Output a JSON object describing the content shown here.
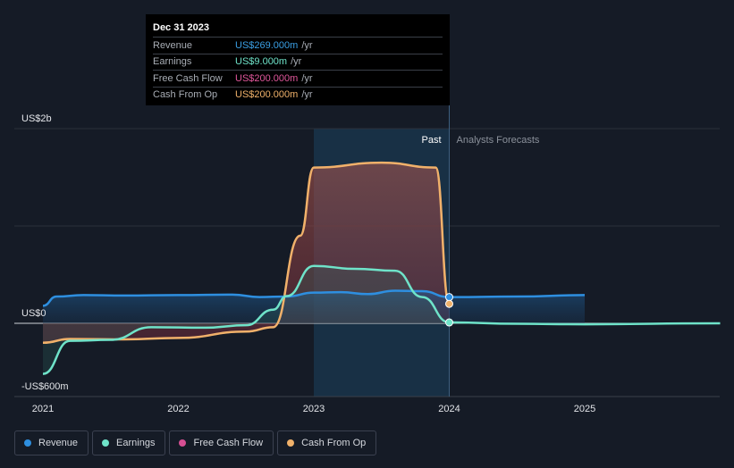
{
  "tooltip": {
    "date": "Dec 31 2023",
    "rows": [
      {
        "label": "Revenue",
        "value": "US$269.000m",
        "unit": "/yr",
        "color": "#3a9fe4"
      },
      {
        "label": "Earnings",
        "value": "US$9.000m",
        "unit": "/yr",
        "color": "#6fe3c9"
      },
      {
        "label": "Free Cash Flow",
        "value": "US$200.000m",
        "unit": "/yr",
        "color": "#e0579b"
      },
      {
        "label": "Cash From Op",
        "value": "US$200.000m",
        "unit": "/yr",
        "color": "#f0b16a"
      }
    ]
  },
  "legend": [
    {
      "label": "Revenue",
      "color": "#2e8fe0"
    },
    {
      "label": "Earnings",
      "color": "#6fe3c9"
    },
    {
      "label": "Free Cash Flow",
      "color": "#d64f93"
    },
    {
      "label": "Cash From Op",
      "color": "#f0b16a"
    }
  ],
  "chart_data": {
    "type": "area",
    "y_tick_labels": [
      "US$2b",
      "US$0",
      "-US$600m"
    ],
    "x_tick_labels": [
      "2021",
      "2022",
      "2023",
      "2024",
      "2025"
    ],
    "xlim": [
      2021.0,
      2026.0
    ],
    "ylim": [
      -600,
      2000
    ],
    "divider_x": 2024.0,
    "past_label": "Past",
    "forecast_label": "Analysts Forecasts",
    "series": [
      {
        "name": "Revenue",
        "color": "#2e8fe0",
        "forecast_until": 2025.0,
        "points": [
          [
            2021.0,
            180
          ],
          [
            2021.1,
            275
          ],
          [
            2021.3,
            290
          ],
          [
            2021.6,
            285
          ],
          [
            2022.0,
            290
          ],
          [
            2022.4,
            295
          ],
          [
            2022.6,
            270
          ],
          [
            2022.8,
            275
          ],
          [
            2023.0,
            315
          ],
          [
            2023.2,
            320
          ],
          [
            2023.4,
            300
          ],
          [
            2023.6,
            335
          ],
          [
            2023.8,
            330
          ],
          [
            2024.0,
            269
          ],
          [
            2024.5,
            275
          ],
          [
            2025.0,
            290
          ]
        ]
      },
      {
        "name": "Earnings",
        "color": "#6fe3c9",
        "forecast_until": 2026.0,
        "points": [
          [
            2021.0,
            -520
          ],
          [
            2021.2,
            -180
          ],
          [
            2021.5,
            -170
          ],
          [
            2021.8,
            -40
          ],
          [
            2022.2,
            -45
          ],
          [
            2022.5,
            -20
          ],
          [
            2022.7,
            140
          ],
          [
            2022.8,
            280
          ],
          [
            2023.0,
            590
          ],
          [
            2023.3,
            560
          ],
          [
            2023.6,
            540
          ],
          [
            2023.8,
            270
          ],
          [
            2024.0,
            9
          ],
          [
            2024.5,
            -5
          ],
          [
            2025.0,
            -10
          ],
          [
            2026.0,
            0
          ]
        ]
      },
      {
        "name": "Free Cash Flow",
        "color": "#d64f93",
        "points": [
          [
            2021.0,
            -200
          ],
          [
            2021.2,
            -160
          ],
          [
            2021.6,
            -165
          ],
          [
            2022.0,
            -150
          ],
          [
            2022.5,
            -85
          ],
          [
            2022.7,
            -40
          ],
          [
            2022.9,
            900
          ],
          [
            2023.0,
            1600
          ],
          [
            2023.5,
            1650
          ],
          [
            2023.9,
            1600
          ],
          [
            2024.0,
            200
          ]
        ]
      },
      {
        "name": "Cash From Op",
        "color": "#f0b16a",
        "points": [
          [
            2021.0,
            -200
          ],
          [
            2021.2,
            -160
          ],
          [
            2021.6,
            -165
          ],
          [
            2022.0,
            -150
          ],
          [
            2022.5,
            -85
          ],
          [
            2022.7,
            -40
          ],
          [
            2022.9,
            900
          ],
          [
            2023.0,
            1600
          ],
          [
            2023.5,
            1650
          ],
          [
            2023.9,
            1600
          ],
          [
            2024.0,
            200
          ]
        ]
      }
    ]
  }
}
